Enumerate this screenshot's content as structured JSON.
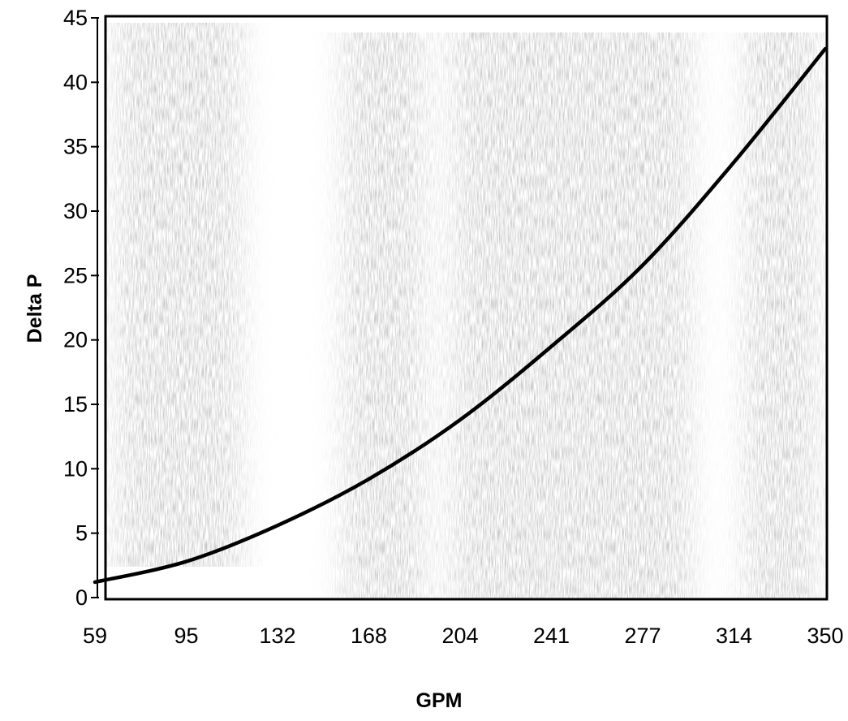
{
  "chart_data": {
    "type": "line",
    "title": "",
    "xlabel": "GPM",
    "ylabel": "Delta P",
    "x_ticks": [
      "59",
      "95",
      "132",
      "168",
      "204",
      "241",
      "277",
      "314",
      "350"
    ],
    "y_ticks": [
      "0",
      "5",
      "10",
      "15",
      "20",
      "25",
      "30",
      "35",
      "40",
      "45"
    ],
    "xlim": [
      59,
      350
    ],
    "ylim": [
      0,
      45
    ],
    "grid": false,
    "legend": "none",
    "series": [
      {
        "x": [
          59,
          95,
          132,
          168,
          204,
          241,
          277,
          314,
          350
        ],
        "y": [
          1.2,
          2.8,
          5.6,
          9.2,
          13.8,
          19.5,
          25.8,
          33.8,
          42.6
        ],
        "color": "#000000"
      }
    ],
    "background_texture": "vertical grey halftone streaks (scan noise)"
  }
}
